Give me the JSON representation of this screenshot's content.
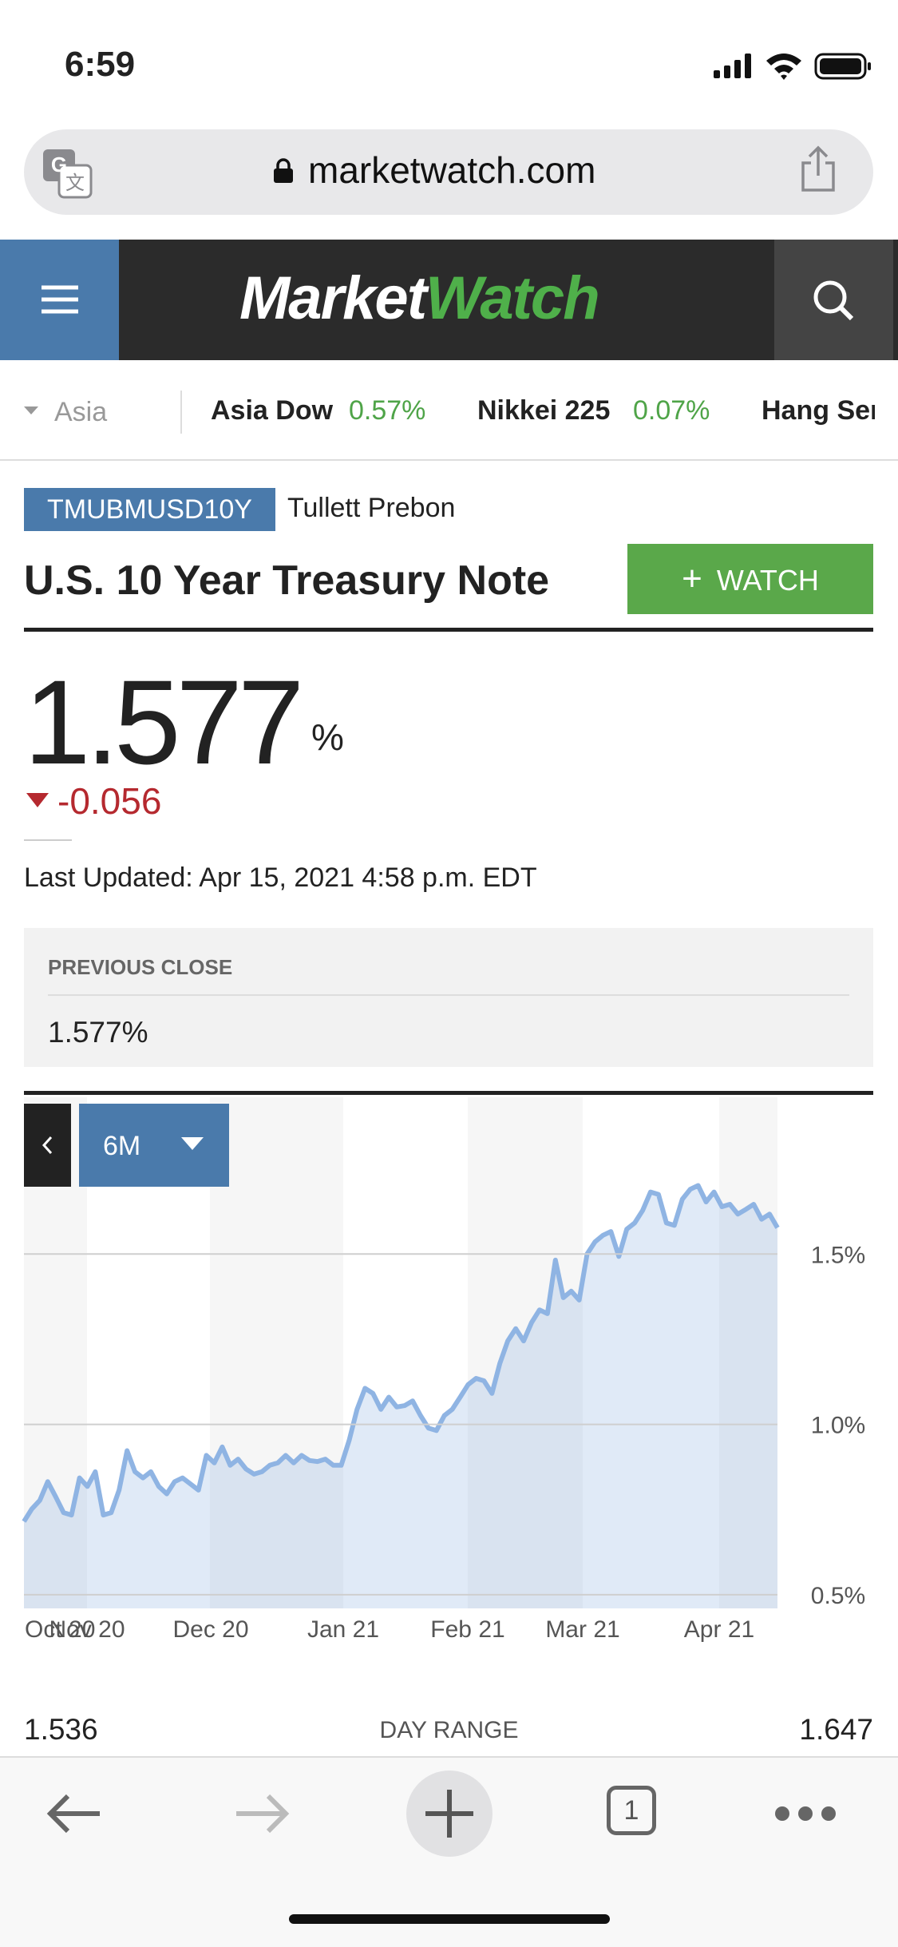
{
  "status_bar": {
    "time": "6:59"
  },
  "browser": {
    "url": "marketwatch.com",
    "tab_count": "1"
  },
  "header": {
    "logo_part1": "Market",
    "logo_part2": "Watch"
  },
  "ticker": {
    "region": "Asia",
    "items": [
      {
        "name": "Asia Dow",
        "change": "0.57%"
      },
      {
        "name": "Nikkei 225",
        "change": "0.07%"
      },
      {
        "name": "Hang Seng"
      }
    ]
  },
  "quote": {
    "symbol": "TMUBMUSD10Y",
    "source": "Tullett Prebon",
    "title": "U.S. 10 Year Treasury Note",
    "watch_button": "WATCH",
    "price": "1.577",
    "price_unit": "%",
    "change": "-0.056",
    "last_updated": "Last Updated: Apr 15, 2021 4:58 p.m. EDT",
    "previous_close_label": "PREVIOUS CLOSE",
    "previous_close": "1.577%"
  },
  "chart_data": {
    "type": "area",
    "range_selector": "6M",
    "color": "#8fb4e3",
    "grid": true,
    "ylim": [
      0.46,
      1.96
    ],
    "yticks": [
      {
        "value": 0.5,
        "label": "0.5%"
      },
      {
        "value": 1.0,
        "label": "1.0%"
      },
      {
        "value": 1.5,
        "label": "1.5%"
      }
    ],
    "x_labels": [
      "Oct 20",
      "Nov 20",
      "Dec 20",
      "Jan 21",
      "Feb 21",
      "Mar 21",
      "Apr 21"
    ],
    "values": [
      0.715,
      0.752,
      0.777,
      0.832,
      0.788,
      0.741,
      0.734,
      0.843,
      0.818,
      0.861,
      0.734,
      0.741,
      0.807,
      0.923,
      0.861,
      0.843,
      0.861,
      0.818,
      0.796,
      0.832,
      0.843,
      0.825,
      0.807,
      0.909,
      0.887,
      0.934,
      0.88,
      0.898,
      0.869,
      0.854,
      0.861,
      0.88,
      0.887,
      0.909,
      0.887,
      0.909,
      0.894,
      0.891,
      0.898,
      0.88,
      0.88,
      0.953,
      1.044,
      1.106,
      1.091,
      1.044,
      1.08,
      1.051,
      1.055,
      1.069,
      1.026,
      0.989,
      0.982,
      1.026,
      1.044,
      1.08,
      1.117,
      1.135,
      1.128,
      1.091,
      1.179,
      1.245,
      1.281,
      1.245,
      1.299,
      1.336,
      1.325,
      1.482,
      1.372,
      1.391,
      1.365,
      1.5,
      1.536,
      1.555,
      1.566,
      1.493,
      1.573,
      1.591,
      1.628,
      1.682,
      1.675,
      1.591,
      1.584,
      1.661,
      1.69,
      1.701,
      1.653,
      1.682,
      1.639,
      1.646,
      1.617,
      1.631,
      1.646,
      1.602,
      1.617,
      1.577
    ]
  },
  "day_range": {
    "label": "DAY RANGE",
    "low": "1.536",
    "high": "1.647"
  }
}
